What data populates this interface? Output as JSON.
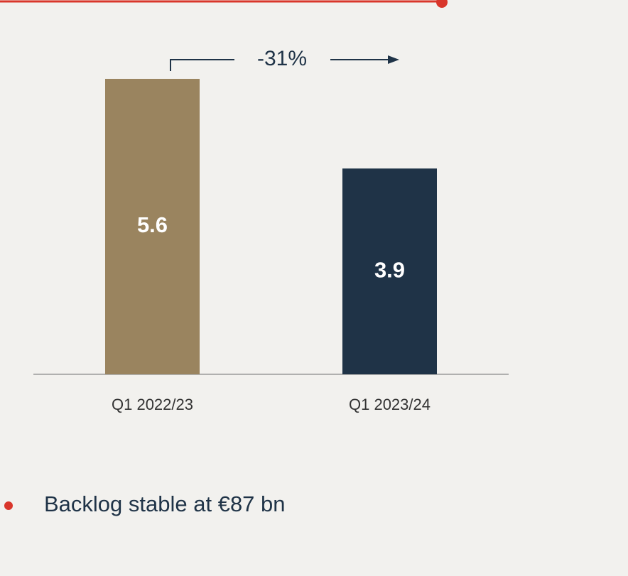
{
  "chart_data": {
    "type": "bar",
    "categories": [
      "Q1 2022/23",
      "Q1 2023/24"
    ],
    "values": [
      5.6,
      3.9
    ],
    "colors": [
      "#9a845f",
      "#1f3347"
    ],
    "annotation": "-31%",
    "bullet": "Backlog stable at €87 bn"
  }
}
